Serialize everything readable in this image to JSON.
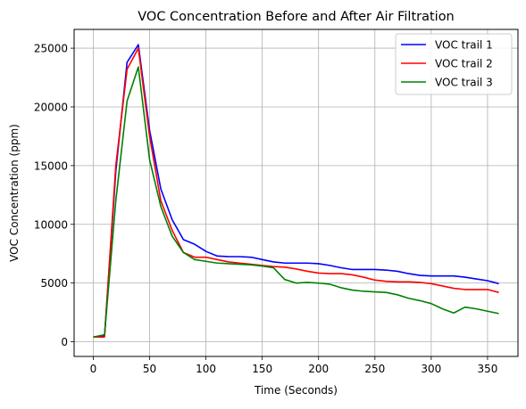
{
  "chart_data": {
    "type": "line",
    "title": "VOC Concentration Before and After Air Filtration",
    "xlabel": "Time (Seconds)",
    "ylabel": "VOC Concentration (ppm)",
    "xlim": [
      -17,
      377
    ],
    "ylim": [
      -1250,
      26600
    ],
    "xticks": [
      0,
      50,
      100,
      150,
      200,
      250,
      300,
      350
    ],
    "yticks": [
      0,
      5000,
      10000,
      15000,
      20000,
      25000
    ],
    "grid": true,
    "legend_position": "top-right",
    "x": [
      0,
      10,
      20,
      30,
      40,
      50,
      60,
      70,
      80,
      90,
      100,
      110,
      120,
      130,
      140,
      150,
      160,
      170,
      180,
      190,
      200,
      210,
      220,
      230,
      240,
      250,
      260,
      270,
      280,
      290,
      300,
      310,
      320,
      330,
      340,
      350,
      360
    ],
    "series": [
      {
        "name": "VOC trail 1",
        "color": "#0000ff",
        "values": [
          400,
          500,
          14500,
          23800,
          25300,
          18000,
          13000,
          10400,
          8700,
          8300,
          7700,
          7300,
          7250,
          7250,
          7200,
          7000,
          6800,
          6700,
          6700,
          6700,
          6650,
          6500,
          6300,
          6150,
          6150,
          6150,
          6100,
          6000,
          5800,
          5650,
          5600,
          5600,
          5600,
          5500,
          5350,
          5200,
          4950
        ]
      },
      {
        "name": "VOC trail 2",
        "color": "#ff0000",
        "values": [
          400,
          400,
          15000,
          23200,
          25000,
          17500,
          12000,
          9500,
          7600,
          7200,
          7200,
          7000,
          6800,
          6700,
          6600,
          6500,
          6400,
          6350,
          6200,
          6000,
          5850,
          5800,
          5800,
          5700,
          5500,
          5250,
          5150,
          5100,
          5100,
          5050,
          4950,
          4750,
          4550,
          4450,
          4450,
          4450,
          4200
        ]
      },
      {
        "name": "VOC trail 3",
        "color": "#008000",
        "values": [
          400,
          600,
          12000,
          20500,
          23400,
          15500,
          11500,
          9000,
          7600,
          7000,
          6850,
          6700,
          6650,
          6600,
          6550,
          6450,
          6300,
          5300,
          5000,
          5050,
          5000,
          4900,
          4600,
          4400,
          4300,
          4250,
          4200,
          4000,
          3700,
          3500,
          3250,
          2800,
          2450,
          2950,
          2800,
          2600,
          2400
        ]
      }
    ]
  }
}
